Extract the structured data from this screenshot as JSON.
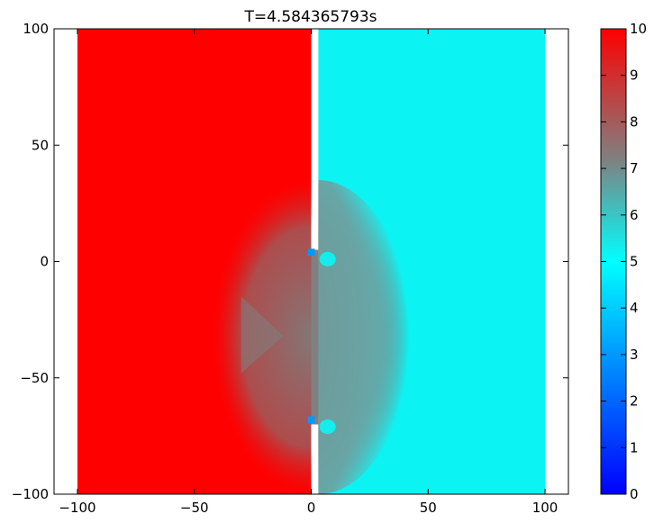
{
  "chart_data": [
    {
      "type": "heatmap",
      "title": "T=4.584365793s",
      "xlabel": "",
      "ylabel": "",
      "xlim": [
        -110,
        110
      ],
      "ylim": [
        -100,
        100
      ],
      "xticks": [
        -100,
        -50,
        0,
        50,
        100
      ],
      "xtick_labels": [
        "−100",
        "−50",
        "0",
        "50",
        "100"
      ],
      "yticks": [
        -100,
        -50,
        0,
        50,
        100
      ],
      "ytick_labels": [
        "−100",
        "−50",
        "0",
        "50",
        "100"
      ],
      "grid": false,
      "colormap": "red-grey-cyan-blue",
      "domain_x": [
        -100,
        100
      ],
      "domain_y": [
        -100,
        100
      ],
      "wall_x": [
        0,
        3
      ],
      "wall_openings_y": [
        [
          -70,
          5
        ]
      ],
      "left_region_value": 10,
      "right_region_value": 5.2,
      "mixing_zone_value": 7.2,
      "mixing_zone_x_extent": [
        -42,
        42
      ],
      "mixing_zone_y_extent": [
        -100,
        35
      ],
      "low_value_spots": [
        {
          "x": 0,
          "y": 4,
          "value": 3
        },
        {
          "x": 0,
          "y": -68,
          "value": 3
        }
      ]
    },
    {
      "type": "colorbar",
      "ylim": [
        0,
        10
      ],
      "ticks": [
        0,
        1,
        2,
        3,
        4,
        5,
        6,
        7,
        8,
        9,
        10
      ],
      "tick_labels": [
        "0",
        "1",
        "2",
        "3",
        "4",
        "5",
        "6",
        "7",
        "8",
        "9",
        "10"
      ],
      "colors": [
        {
          "value": 0,
          "color": "#0000ff"
        },
        {
          "value": 5,
          "color": "#00ffff"
        },
        {
          "value": 7.2,
          "color": "#808080"
        },
        {
          "value": 10,
          "color": "#ff0000"
        }
      ]
    }
  ]
}
